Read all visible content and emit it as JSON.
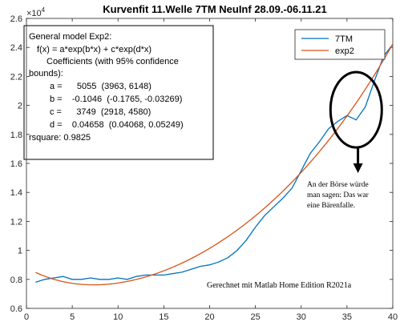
{
  "chart_data": {
    "type": "line",
    "title": "Kurvenfit 11.Welle 7TM NeuInf 28.09.-06.11.21",
    "xlabel": "",
    "ylabel": "",
    "xlim": [
      0,
      40
    ],
    "ylim": [
      0.6,
      2.6
    ],
    "y_exponent_label": "×10",
    "y_exponent_power": "4",
    "x_ticks": [
      0,
      5,
      10,
      15,
      20,
      25,
      30,
      35,
      40
    ],
    "x_tick_labels": [
      "0",
      "5",
      "10",
      "15",
      "20",
      "25",
      "30",
      "35",
      "40"
    ],
    "y_ticks": [
      0.6,
      0.8,
      1,
      1.2,
      1.4,
      1.6,
      1.8,
      2,
      2.2,
      2.4,
      2.6
    ],
    "y_tick_labels": [
      "0.6",
      "0.8",
      "1",
      "1.2",
      "1.4",
      "1.6",
      "1.8",
      "2",
      "2.2",
      "2.4",
      "2.6"
    ],
    "grid": false,
    "legend_position": "top-right",
    "series": [
      {
        "name": "7TM",
        "color": "#0072BD",
        "x": [
          1,
          2,
          3,
          4,
          5,
          6,
          7,
          8,
          9,
          10,
          11,
          12,
          13,
          14,
          15,
          16,
          17,
          18,
          19,
          20,
          21,
          22,
          23,
          24,
          25,
          26,
          27,
          28,
          29,
          30,
          31,
          32,
          33,
          34,
          35,
          36,
          37,
          38,
          39,
          40
        ],
        "y": [
          0.78,
          0.8,
          0.81,
          0.82,
          0.8,
          0.8,
          0.81,
          0.8,
          0.8,
          0.81,
          0.8,
          0.82,
          0.83,
          0.83,
          0.83,
          0.84,
          0.85,
          0.87,
          0.89,
          0.9,
          0.92,
          0.95,
          1.0,
          1.07,
          1.16,
          1.24,
          1.3,
          1.36,
          1.43,
          1.55,
          1.67,
          1.75,
          1.84,
          1.89,
          1.93,
          1.9,
          1.99,
          2.17,
          2.34,
          2.42
        ]
      },
      {
        "name": "exp2",
        "color": "#D95319",
        "model": {
          "a": 5055,
          "b": -0.1046,
          "c": 3749,
          "d": 0.04658
        },
        "scale": 10000,
        "x_start": 1,
        "x_end": 40
      }
    ],
    "annotations": {
      "fit_box": [
        "General model Exp2:",
        "f(x) = a*exp(b*x) + c*exp(d*x)",
        "Coefficients (with 95% confidence",
        "bounds):",
        "a =      5055  (3963, 6148)",
        "b =    -0.1046  (-0.1765, -0.03269)",
        "c =      3749  (2918, 4580)",
        "d =    0.04658  (0.04068, 0.05249)",
        "rsquare: 0.9825"
      ],
      "note_lines": [
        "An der Börse würde",
        "man sagen: Das war",
        "eine Bärenfalle."
      ],
      "footer": "Gerechnet mit Matlab Home Edition R2021a",
      "circle_center": {
        "x": 36,
        "y": 1.97
      },
      "circle_radius_x": 2.8,
      "circle_radius_y": 0.26,
      "arrow_x": 36.2,
      "arrow_y_start": 1.71,
      "arrow_y_end": 1.55
    }
  }
}
